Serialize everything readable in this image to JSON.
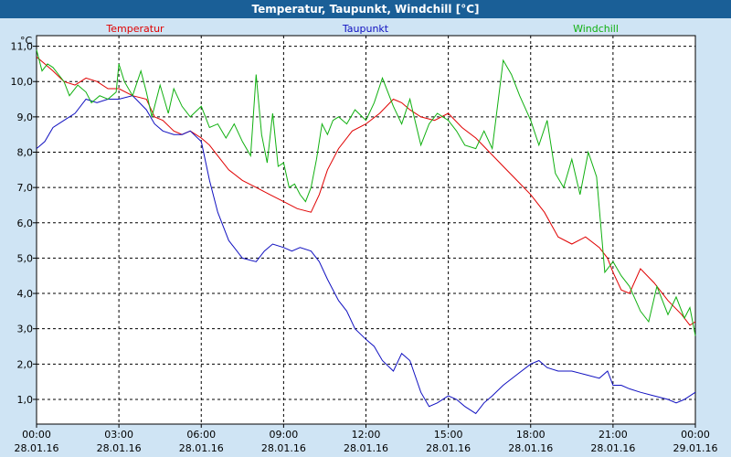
{
  "chart_data": {
    "type": "line",
    "title": "Temperatur, Taupunkt, Windchill [°C]",
    "ylabel": "°C",
    "ylim": [
      0.3,
      11.3
    ],
    "y_ticks": [
      "1,0",
      "2,0",
      "3,0",
      "4,0",
      "5,0",
      "6,0",
      "7,0",
      "8,0",
      "9,0",
      "10,0",
      "11,0"
    ],
    "y_tick_values": [
      1,
      2,
      3,
      4,
      5,
      6,
      7,
      8,
      9,
      10,
      11
    ],
    "xlim": [
      0,
      24
    ],
    "x_tick_values": [
      0,
      3,
      6,
      9,
      12,
      15,
      18,
      21,
      24
    ],
    "x_tick_times": [
      "00:00",
      "03:00",
      "06:00",
      "09:00",
      "12:00",
      "15:00",
      "18:00",
      "21:00",
      "00:00"
    ],
    "x_tick_dates": [
      "28.01.16",
      "28.01.16",
      "28.01.16",
      "28.01.16",
      "28.01.16",
      "28.01.16",
      "28.01.16",
      "28.01.16",
      "29.01.16"
    ],
    "grid": true,
    "series": [
      {
        "name": "Temperatur",
        "color": "#e00000",
        "x": [
          0,
          0.3,
          0.6,
          1.0,
          1.4,
          1.8,
          2.2,
          2.6,
          3.0,
          3.5,
          4.0,
          4.3,
          4.6,
          5.0,
          5.3,
          5.6,
          6.0,
          6.3,
          6.6,
          7.0,
          7.5,
          8.0,
          8.5,
          9.0,
          9.5,
          10.0,
          10.3,
          10.6,
          11.0,
          11.5,
          12.0,
          12.5,
          13.0,
          13.3,
          13.6,
          14.0,
          14.5,
          15.0,
          15.5,
          16.0,
          16.5,
          17.0,
          17.5,
          18.0,
          18.5,
          19.0,
          19.5,
          20.0,
          20.5,
          20.8,
          21.0,
          21.3,
          21.6,
          22.0,
          22.5,
          23.0,
          23.5,
          23.8,
          24.0
        ],
        "y": [
          10.7,
          10.5,
          10.3,
          10.0,
          9.9,
          10.1,
          10.0,
          9.8,
          9.8,
          9.6,
          9.5,
          9.0,
          8.9,
          8.6,
          8.5,
          8.6,
          8.4,
          8.2,
          7.9,
          7.5,
          7.2,
          7.0,
          6.8,
          6.6,
          6.4,
          6.3,
          6.8,
          7.5,
          8.1,
          8.6,
          8.8,
          9.1,
          9.5,
          9.4,
          9.2,
          9.0,
          8.9,
          9.1,
          8.7,
          8.4,
          8.0,
          7.6,
          7.2,
          6.8,
          6.3,
          5.6,
          5.4,
          5.6,
          5.3,
          5.0,
          4.6,
          4.1,
          4.0,
          4.7,
          4.3,
          3.8,
          3.4,
          3.1,
          3.2
        ]
      },
      {
        "name": "Taupunkt",
        "color": "#1010c0",
        "x": [
          0,
          0.3,
          0.6,
          1.0,
          1.4,
          1.8,
          2.2,
          2.6,
          3.0,
          3.5,
          4.0,
          4.3,
          4.6,
          5.0,
          5.3,
          5.6,
          6.0,
          6.3,
          6.6,
          7.0,
          7.5,
          8.0,
          8.3,
          8.6,
          9.0,
          9.3,
          9.6,
          10.0,
          10.3,
          10.6,
          11.0,
          11.3,
          11.6,
          12.0,
          12.3,
          12.6,
          13.0,
          13.3,
          13.6,
          14.0,
          14.3,
          14.6,
          15.0,
          15.3,
          15.6,
          16.0,
          16.3,
          16.6,
          17.0,
          17.5,
          18.0,
          18.3,
          18.6,
          19.0,
          19.5,
          20.0,
          20.5,
          20.8,
          21.0,
          21.3,
          21.6,
          22.0,
          22.5,
          23.0,
          23.3,
          23.6,
          24.0
        ],
        "y": [
          8.1,
          8.3,
          8.7,
          8.9,
          9.1,
          9.5,
          9.4,
          9.5,
          9.5,
          9.6,
          9.2,
          8.8,
          8.6,
          8.5,
          8.5,
          8.6,
          8.3,
          7.2,
          6.3,
          5.5,
          5.0,
          4.9,
          5.2,
          5.4,
          5.3,
          5.2,
          5.3,
          5.2,
          4.9,
          4.4,
          3.8,
          3.5,
          3.0,
          2.7,
          2.5,
          2.1,
          1.8,
          2.3,
          2.1,
          1.2,
          0.8,
          0.9,
          1.1,
          1.0,
          0.8,
          0.6,
          0.9,
          1.1,
          1.4,
          1.7,
          2.0,
          2.1,
          1.9,
          1.8,
          1.8,
          1.7,
          1.6,
          1.8,
          1.4,
          1.4,
          1.3,
          1.2,
          1.1,
          1.0,
          0.9,
          1.0,
          1.2
        ]
      },
      {
        "name": "Windchill",
        "color": "#10b010",
        "x": [
          0,
          0.2,
          0.4,
          0.6,
          0.8,
          1.0,
          1.2,
          1.5,
          1.8,
          2.0,
          2.3,
          2.6,
          2.9,
          3.0,
          3.2,
          3.5,
          3.8,
          4.0,
          4.2,
          4.5,
          4.8,
          5.0,
          5.3,
          5.6,
          6.0,
          6.3,
          6.6,
          6.9,
          7.2,
          7.5,
          7.8,
          8.0,
          8.2,
          8.4,
          8.6,
          8.8,
          9.0,
          9.2,
          9.4,
          9.6,
          9.8,
          10.0,
          10.2,
          10.4,
          10.6,
          10.8,
          11.0,
          11.3,
          11.6,
          12.0,
          12.3,
          12.6,
          13.0,
          13.3,
          13.6,
          14.0,
          14.3,
          14.6,
          15.0,
          15.3,
          15.6,
          16.0,
          16.3,
          16.6,
          17.0,
          17.3,
          17.6,
          18.0,
          18.3,
          18.6,
          18.9,
          19.2,
          19.5,
          19.8,
          20.1,
          20.4,
          20.7,
          21.0,
          21.3,
          21.6,
          22.0,
          22.3,
          22.6,
          23.0,
          23.3,
          23.6,
          23.8,
          24.0
        ],
        "y": [
          10.9,
          10.3,
          10.5,
          10.4,
          10.2,
          10.0,
          9.6,
          9.9,
          9.7,
          9.4,
          9.6,
          9.5,
          9.7,
          10.5,
          10.0,
          9.6,
          10.3,
          9.7,
          9.0,
          9.9,
          9.1,
          9.8,
          9.3,
          9.0,
          9.3,
          8.7,
          8.8,
          8.4,
          8.8,
          8.3,
          7.9,
          10.2,
          8.5,
          7.7,
          9.1,
          7.6,
          7.7,
          7.0,
          7.1,
          6.8,
          6.6,
          7.0,
          7.8,
          8.8,
          8.5,
          8.9,
          9.0,
          8.8,
          9.2,
          8.9,
          9.4,
          10.1,
          9.3,
          8.8,
          9.5,
          8.2,
          8.8,
          9.1,
          8.9,
          8.6,
          8.2,
          8.1,
          8.6,
          8.1,
          10.6,
          10.2,
          9.6,
          8.9,
          8.2,
          8.9,
          7.4,
          7.0,
          7.8,
          6.8,
          8.0,
          7.3,
          4.6,
          4.9,
          4.5,
          4.2,
          3.5,
          3.2,
          4.2,
          3.4,
          3.9,
          3.3,
          3.6,
          2.8
        ]
      }
    ]
  }
}
